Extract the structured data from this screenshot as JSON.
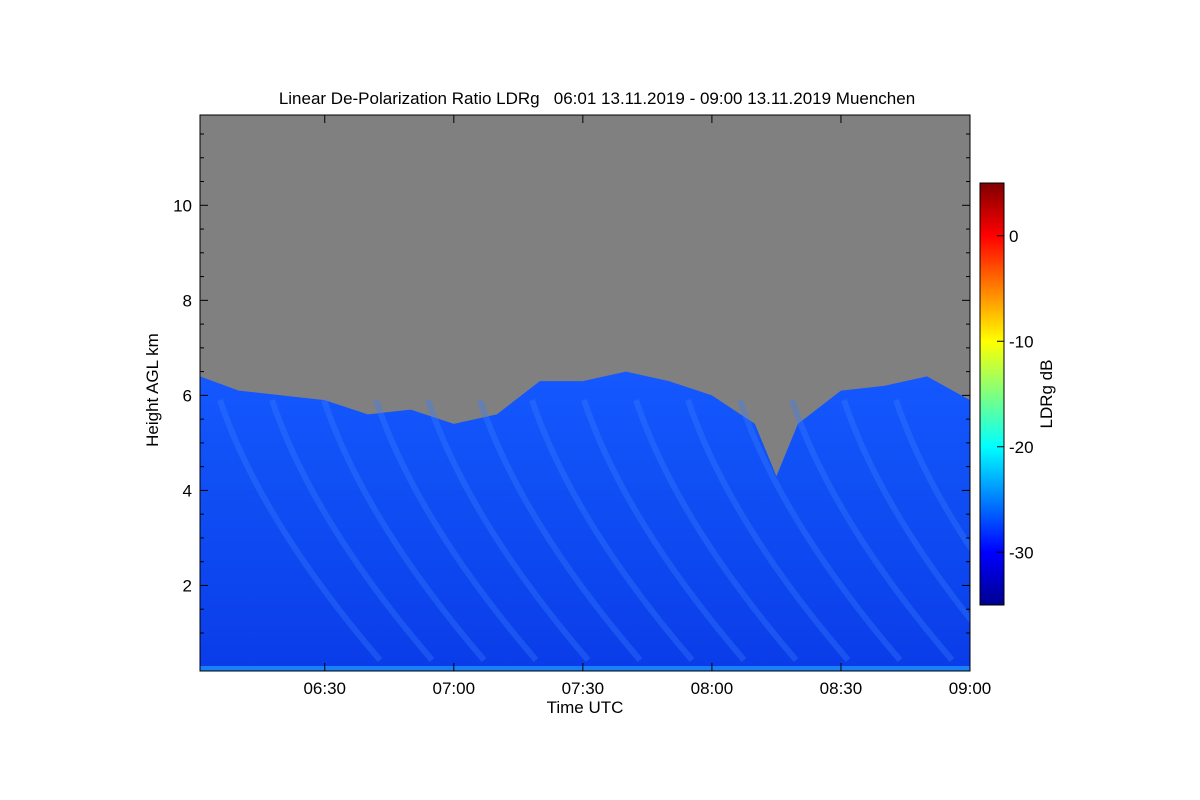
{
  "chart_data": {
    "type": "heatmap",
    "title": "Linear De-Polarization Ratio LDRg   06:01 13.11.2019 - 09:00 13.11.2019 Muenchen",
    "xlabel": "Time UTC",
    "ylabel": "Height AGL km",
    "xlim": [
      "06:01",
      "09:00"
    ],
    "ylim": [
      0.2,
      11.9
    ],
    "x_ticks": [
      "06:30",
      "07:00",
      "07:30",
      "08:00",
      "08:30",
      "09:00"
    ],
    "y_ticks": [
      2,
      4,
      6,
      8,
      10
    ],
    "colorbar": {
      "label": "LDRg dB",
      "range": [
        -35,
        5
      ],
      "ticks": [
        0,
        -10,
        -20,
        -30
      ],
      "colormap": "jet"
    },
    "background_color": "#808080",
    "cloud_top_km": [
      {
        "time": "06:01",
        "height": 6.4
      },
      {
        "time": "06:10",
        "height": 6.1
      },
      {
        "time": "06:20",
        "height": 6.0
      },
      {
        "time": "06:30",
        "height": 5.9
      },
      {
        "time": "06:40",
        "height": 5.6
      },
      {
        "time": "06:50",
        "height": 5.7
      },
      {
        "time": "07:00",
        "height": 5.4
      },
      {
        "time": "07:10",
        "height": 5.6
      },
      {
        "time": "07:20",
        "height": 6.3
      },
      {
        "time": "07:30",
        "height": 6.3
      },
      {
        "time": "07:40",
        "height": 6.5
      },
      {
        "time": "07:50",
        "height": 6.3
      },
      {
        "time": "08:00",
        "height": 6.0
      },
      {
        "time": "08:10",
        "height": 5.4
      },
      {
        "time": "08:15",
        "height": 4.3
      },
      {
        "time": "08:20",
        "height": 5.4
      },
      {
        "time": "08:30",
        "height": 6.1
      },
      {
        "time": "08:40",
        "height": 6.2
      },
      {
        "time": "08:50",
        "height": 6.4
      },
      {
        "time": "09:00",
        "height": 5.9
      }
    ],
    "typical_value_db": -30
  }
}
